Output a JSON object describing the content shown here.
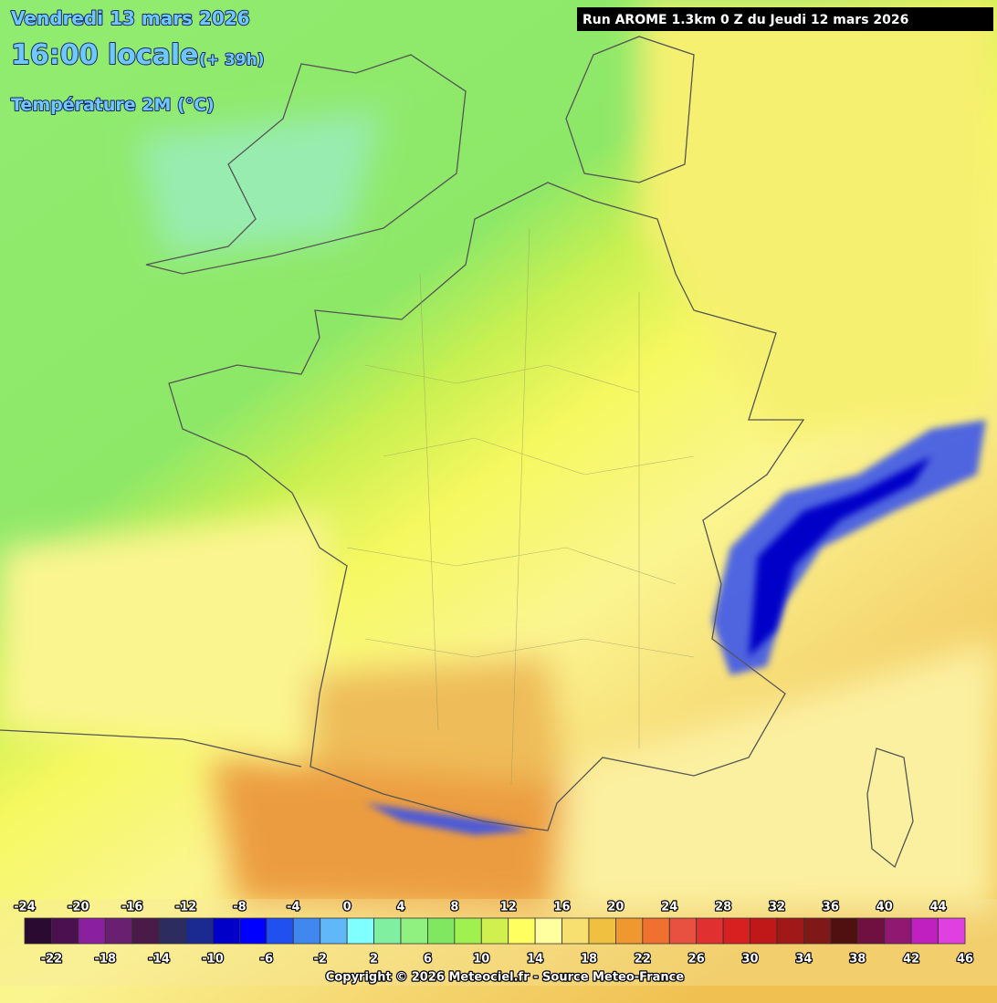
{
  "header": {
    "date": "Vendredi 13 mars 2026",
    "time": "16:00 locale",
    "offset": "(+ 39h)",
    "parameter": "Température 2M (°C)",
    "run": "Run AROME 1.3km 0 Z du Jeudi 12 mars 2026"
  },
  "legend": {
    "ticks": [
      -24,
      -22,
      -20,
      -18,
      -16,
      -14,
      -12,
      -10,
      -8,
      -6,
      -4,
      -2,
      0,
      2,
      4,
      6,
      8,
      10,
      12,
      14,
      16,
      18,
      20,
      22,
      24,
      26,
      28,
      30,
      32,
      34,
      36,
      38,
      40,
      42,
      44,
      46
    ],
    "colors": [
      "#2a0a30",
      "#4a1050",
      "#8a20a0",
      "#6a2070",
      "#4a1a48",
      "#2c2c60",
      "#1a2a90",
      "#0000c8",
      "#0000ff",
      "#2050f0",
      "#4088f0",
      "#60b8f8",
      "#80ffff",
      "#80f0a0",
      "#90f080",
      "#80e860",
      "#a0f050",
      "#d0f050",
      "#ffff60",
      "#ffffa0",
      "#f8e070",
      "#f0c040",
      "#f09830",
      "#f07030",
      "#e85040",
      "#e03030",
      "#d82020",
      "#c01818",
      "#a01818",
      "#801818",
      "#501010",
      "#701040",
      "#901870",
      "#c020c0",
      "#e040e0"
    ]
  },
  "footer": {
    "copyright": "Copyright © 2026 Meteociel.fr - Source Meteo-France"
  }
}
